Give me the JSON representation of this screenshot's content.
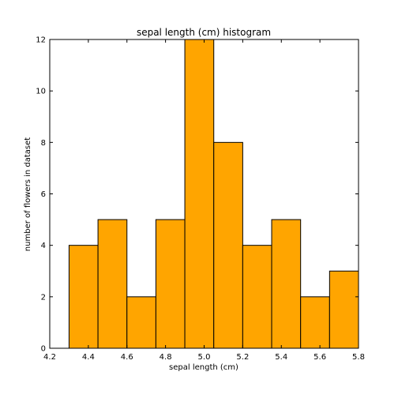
{
  "chart_data": {
    "type": "bar",
    "title": "sepal length (cm) histogram",
    "xlabel": "sepal length (cm)",
    "ylabel": "number of flowers in dataset",
    "bin_edges": [
      4.3,
      4.45,
      4.6,
      4.75,
      4.9,
      5.05,
      5.2,
      5.35,
      5.5,
      5.65,
      5.8
    ],
    "values": [
      4,
      5,
      2,
      5,
      12,
      8,
      4,
      5,
      2,
      3
    ],
    "xlim": [
      4.2,
      5.8
    ],
    "ylim": [
      0,
      12
    ],
    "xticks": [
      "4.2",
      "4.4",
      "4.6",
      "4.8",
      "5.0",
      "5.2",
      "5.4",
      "5.6",
      "5.8"
    ],
    "yticks": [
      "0",
      "2",
      "4",
      "6",
      "8",
      "10",
      "12"
    ],
    "bar_color": "#ffa500",
    "edge_color": "#000000",
    "grid": false
  }
}
